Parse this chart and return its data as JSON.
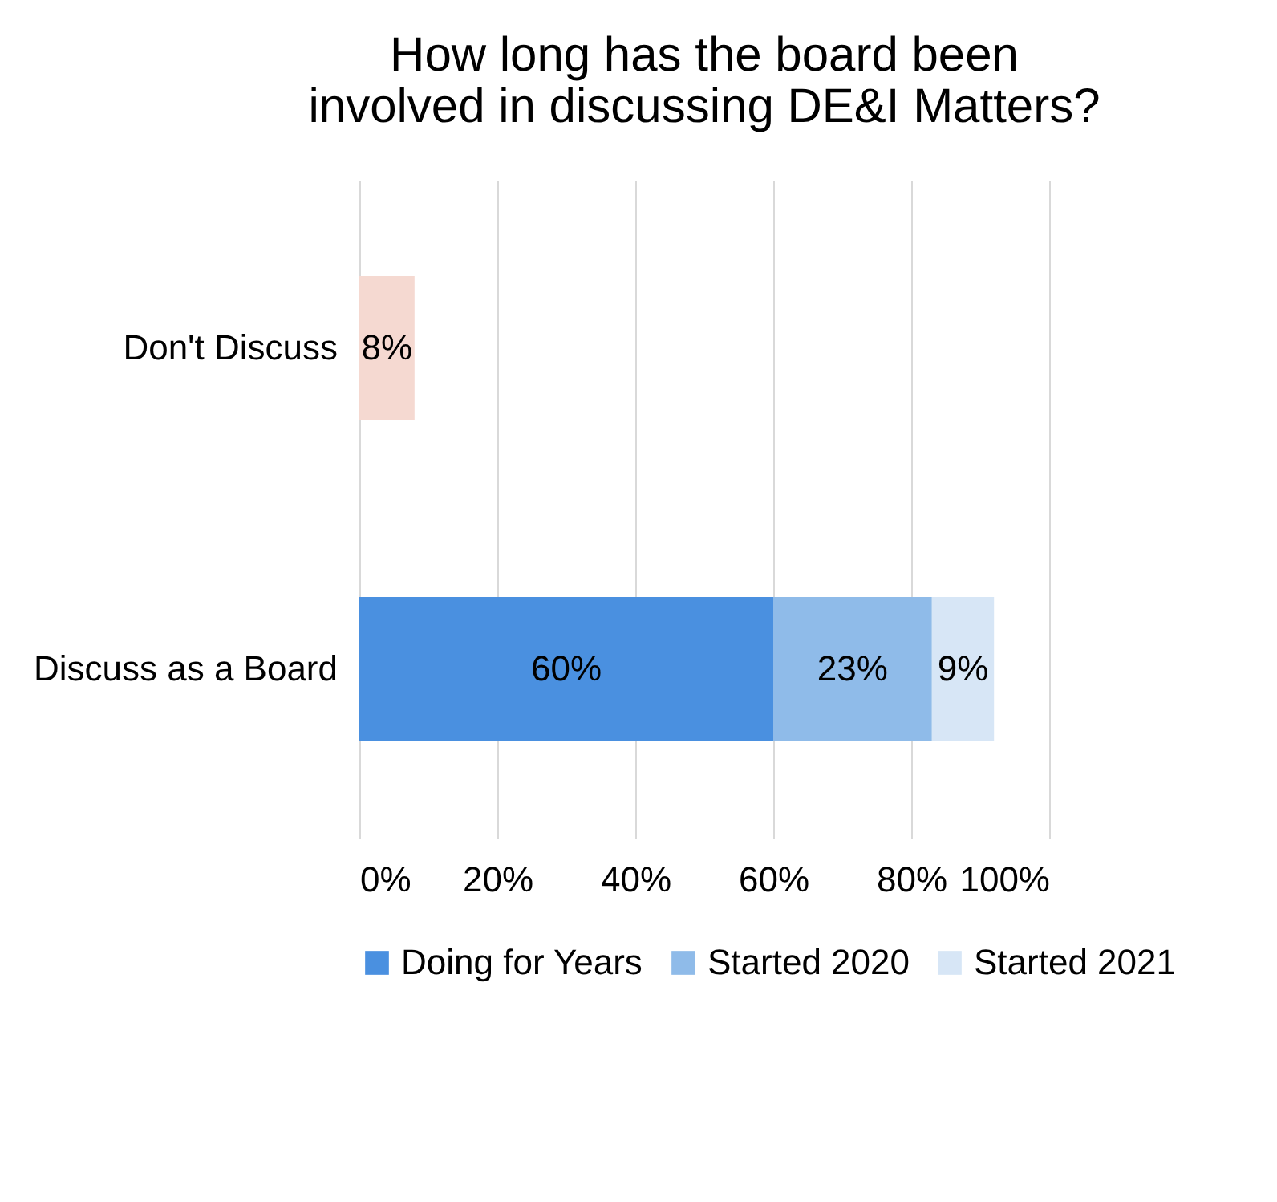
{
  "chart_data": {
    "type": "bar",
    "orientation": "horizontal",
    "stacked": true,
    "title": [
      "How long has the board been",
      "involved in discussing DE&I Matters?"
    ],
    "categories": [
      "Don't Discuss",
      "Discuss as a Board"
    ],
    "series": [
      {
        "name": "Doing for Years",
        "color": "#4a90e0",
        "colors": [
          "#f5d9d1",
          "#4a90e0"
        ],
        "values": [
          8,
          60
        ],
        "value_labels": [
          "8%",
          "60%"
        ]
      },
      {
        "name": "Started 2020",
        "color": "#8fbbe9",
        "values": [
          null,
          23
        ],
        "value_labels": [
          null,
          "23%"
        ]
      },
      {
        "name": "Started 2021",
        "color": "#d7e6f6",
        "values": [
          null,
          9
        ],
        "value_labels": [
          null,
          "9%"
        ]
      }
    ],
    "xlim": [
      0,
      100
    ],
    "xticks": [
      {
        "value": 0,
        "label": "0%"
      },
      {
        "value": 20,
        "label": "20%"
      },
      {
        "value": 40,
        "label": "40%"
      },
      {
        "value": 60,
        "label": "60%"
      },
      {
        "value": 80,
        "label": "80%"
      },
      {
        "value": 100,
        "label": "100%"
      }
    ],
    "grid": "x",
    "legend": "bottom"
  }
}
